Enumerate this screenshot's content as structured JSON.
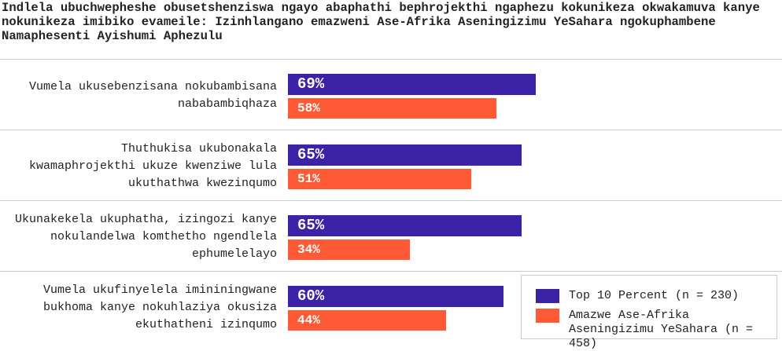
{
  "chart_data": {
    "type": "bar",
    "orientation": "horizontal",
    "title": "Indlela ubuchwepheshe obusetshenziswa ngayo abaphathi bephrojekthi ngaphezu kokunikeza okwakamuva kanye nokunikeza imibiko evameile: Izinhlangano emazweni Ase-Afrika Aseningizimu YeSahara ngokuphambene Namaphesenti Ayishumi Aphezulu",
    "categories": [
      "Vumela ukusebenzisana nokubambisana nababambiqhaza",
      "Thuthukisa ukubonakala kwamaphrojekthi ukuze kwenziwe lula ukuthathwa kwezinqumo",
      "Ukunakekela ukuphatha, izingozi kanye nokulandelwa komthetho ngendlela ephumelelayo",
      "Vumela ukufinyelela imininingwane bukhoma kanye nokuhlaziya okusiza ekuthatheni izinqumo"
    ],
    "series": [
      {
        "name": "Top 10 Percent (n = 230)",
        "color": "#3b22a6",
        "values": [
          69,
          65,
          65,
          60
        ],
        "value_labels": [
          "69%",
          "65%",
          "65%",
          "60%"
        ]
      },
      {
        "name": "Amazwe Ase-Afrika Aseningizimu YeSahara (n = 458)",
        "color": "#ff5a36",
        "values": [
          58,
          51,
          34,
          44
        ],
        "value_labels": [
          "58%",
          "51%",
          "34%",
          "44%"
        ]
      }
    ],
    "legend": "bottom-right"
  }
}
